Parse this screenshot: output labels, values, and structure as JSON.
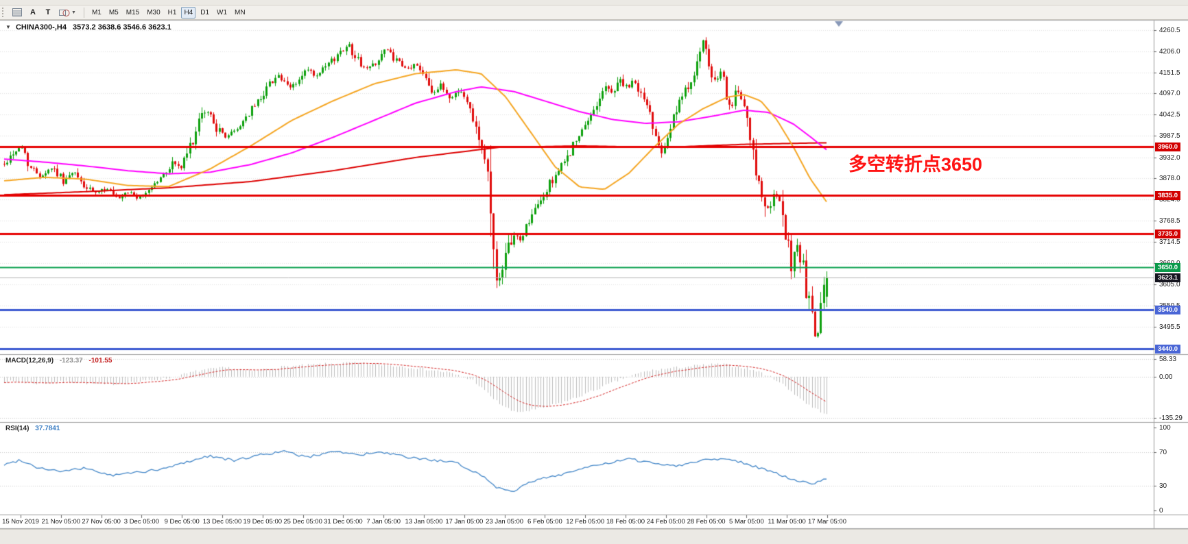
{
  "toolbar": {
    "tools": [
      {
        "id": "grid"
      },
      {
        "id": "text",
        "label": "A"
      },
      {
        "id": "textbox",
        "label": "T"
      },
      {
        "id": "shapes"
      }
    ],
    "timeframes": [
      "M1",
      "M5",
      "M15",
      "M30",
      "H1",
      "H4",
      "D1",
      "W1",
      "MN"
    ],
    "active_timeframe": "H4"
  },
  "chart": {
    "symbol_period": "CHINA300-,H4",
    "ohlc_text": "3573.2 3638.6 3546.6 3623.1",
    "annotation": "多空转折点3650",
    "annotation_color": "#ff1414",
    "price_ticks": [
      4260.5,
      4206.0,
      4151.5,
      4097.0,
      4042.5,
      3987.5,
      3932.0,
      3878.0,
      3824.0,
      3768.5,
      3714.5,
      3660.0,
      3605.0,
      3550.5,
      3495.5,
      3440.0
    ],
    "time_labels": [
      "15 Nov 2019",
      "21 Nov 05:00",
      "27 Nov 05:00",
      "3 Dec 05:00",
      "9 Dec 05:00",
      "13 Dec 05:00",
      "19 Dec 05:00",
      "25 Dec 05:00",
      "31 Dec 05:00",
      "7 Jan 05:00",
      "13 Jan 05:00",
      "17 Jan 05:00",
      "23 Jan 05:00",
      "6 Feb 05:00",
      "12 Feb 05:00",
      "18 Feb 05:00",
      "24 Feb 05:00",
      "28 Feb 05:00",
      "5 Mar 05:00",
      "11 Mar 05:00",
      "17 Mar 05:00"
    ],
    "levels": [
      {
        "label": "3960.0",
        "price": 3960.0,
        "line_color": "#e60000",
        "badge_color": "#d20000",
        "width": 3
      },
      {
        "label": "3835.0",
        "price": 3835.0,
        "line_color": "#e60000",
        "badge_color": "#d20000",
        "width": 3
      },
      {
        "label": "3735.0",
        "price": 3735.0,
        "line_color": "#e60000",
        "badge_color": "#d20000",
        "width": 3
      },
      {
        "label": "3650.0",
        "price": 3650.0,
        "line_color": "#0aa14e",
        "badge_color": "#0a9a4a",
        "width": 2
      },
      {
        "label": "3540.0",
        "price": 3540.0,
        "line_color": "#3a57d0",
        "badge_color": "#4a66d6",
        "width": 3
      },
      {
        "label": "3440.0",
        "price": 3440.0,
        "line_color": "#3a57d0",
        "badge_color": "#4a66d6",
        "width": 3
      }
    ],
    "current_price": {
      "label": "3623.1",
      "price": 3623.1,
      "badge_color": "#15151f",
      "line_color": "#b4b4b4"
    }
  },
  "macd": {
    "label": "MACD(12,26,9)",
    "main_value": "-123.37",
    "signal_value": "-101.55",
    "axis": [
      {
        "label": "58.33",
        "value": 58.33
      },
      {
        "label": "0.00",
        "value": 0
      },
      {
        "label": "-135.29",
        "value": -135.29
      }
    ]
  },
  "rsi": {
    "label": "RSI(14)",
    "value": "37.7841",
    "axis": [
      {
        "label": "100",
        "value": 100
      },
      {
        "label": "70",
        "value": 70
      },
      {
        "label": "30",
        "value": 30
      },
      {
        "label": "0",
        "value": 0
      }
    ],
    "level_lines": [
      70,
      30
    ]
  },
  "colors": {
    "bull": "#0da00d",
    "bear": "#e00b0b",
    "ma_fast": "#f5a623",
    "ma_mid": "#ff00ff",
    "ma_slow": "#dd0000",
    "macd_hist": "#bdbdbd",
    "macd_signal": "#d42020",
    "rsi_line": "#4286c8",
    "grid": "#e3e3e3",
    "divider": "#9c9c9c",
    "axis_text": "#1c1c1c"
  },
  "chart_data": {
    "type": "candlestick",
    "title": "CHINA300-,H4",
    "y_axis": {
      "range": [
        3425,
        4285
      ],
      "ticks": [
        4260.5,
        4206.0,
        4151.5,
        4097.0,
        4042.5,
        3987.5,
        3932.0,
        3878.0,
        3824.0,
        3768.5,
        3714.5,
        3660.0,
        3605.0,
        3550.5,
        3495.5,
        3440.0
      ]
    },
    "x_axis": {
      "labels": [
        "15 Nov 2019",
        "21 Nov 05:00",
        "27 Nov 05:00",
        "3 Dec 05:00",
        "9 Dec 05:00",
        "13 Dec 05:00",
        "19 Dec 05:00",
        "25 Dec 05:00",
        "31 Dec 05:00",
        "7 Jan 05:00",
        "13 Jan 05:00",
        "17 Jan 05:00",
        "23 Jan 05:00",
        "6 Feb 05:00",
        "12 Feb 05:00",
        "18 Feb 05:00",
        "24 Feb 05:00",
        "28 Feb 05:00",
        "5 Mar 05:00",
        "11 Mar 05:00",
        "17 Mar 05:00"
      ]
    },
    "current_ohlc": {
      "open": 3573.2,
      "high": 3638.6,
      "low": 3546.6,
      "close": 3623.1
    },
    "horizontal_levels": [
      3960.0,
      3835.0,
      3735.0,
      3650.0,
      3540.0,
      3440.0
    ],
    "bars_rendered": 280,
    "close_path": [
      [
        0.0,
        3915
      ],
      [
        0.012,
        3948
      ],
      [
        0.022,
        3958
      ],
      [
        0.032,
        3905
      ],
      [
        0.045,
        3885
      ],
      [
        0.058,
        3908
      ],
      [
        0.072,
        3872
      ],
      [
        0.085,
        3893
      ],
      [
        0.098,
        3855
      ],
      [
        0.112,
        3838
      ],
      [
        0.125,
        3855
      ],
      [
        0.138,
        3820
      ],
      [
        0.152,
        3843
      ],
      [
        0.165,
        3825
      ],
      [
        0.178,
        3856
      ],
      [
        0.192,
        3882
      ],
      [
        0.205,
        3920
      ],
      [
        0.215,
        3905
      ],
      [
        0.225,
        3955
      ],
      [
        0.235,
        4010
      ],
      [
        0.243,
        4052
      ],
      [
        0.252,
        4040
      ],
      [
        0.26,
        4000
      ],
      [
        0.27,
        3987
      ],
      [
        0.282,
        4002
      ],
      [
        0.295,
        4040
      ],
      [
        0.308,
        4075
      ],
      [
        0.32,
        4115
      ],
      [
        0.332,
        4148
      ],
      [
        0.345,
        4108
      ],
      [
        0.357,
        4128
      ],
      [
        0.368,
        4158
      ],
      [
        0.38,
        4138
      ],
      [
        0.392,
        4168
      ],
      [
        0.405,
        4195
      ],
      [
        0.417,
        4228
      ],
      [
        0.428,
        4188
      ],
      [
        0.44,
        4158
      ],
      [
        0.452,
        4178
      ],
      [
        0.464,
        4212
      ],
      [
        0.476,
        4182
      ],
      [
        0.488,
        4158
      ],
      [
        0.5,
        4172
      ],
      [
        0.512,
        4145
      ],
      [
        0.522,
        4098
      ],
      [
        0.532,
        4118
      ],
      [
        0.542,
        4082
      ],
      [
        0.552,
        4108
      ],
      [
        0.562,
        4078
      ],
      [
        0.572,
        4028
      ],
      [
        0.58,
        3962
      ],
      [
        0.587,
        3905
      ],
      [
        0.593,
        3730
      ],
      [
        0.598,
        3648
      ],
      [
        0.603,
        3608
      ],
      [
        0.61,
        3672
      ],
      [
        0.618,
        3735
      ],
      [
        0.627,
        3718
      ],
      [
        0.636,
        3762
      ],
      [
        0.645,
        3795
      ],
      [
        0.654,
        3825
      ],
      [
        0.663,
        3862
      ],
      [
        0.672,
        3895
      ],
      [
        0.681,
        3918
      ],
      [
        0.69,
        3958
      ],
      [
        0.7,
        3988
      ],
      [
        0.71,
        4025
      ],
      [
        0.72,
        4072
      ],
      [
        0.73,
        4115
      ],
      [
        0.739,
        4098
      ],
      [
        0.748,
        4135
      ],
      [
        0.757,
        4108
      ],
      [
        0.766,
        4128
      ],
      [
        0.775,
        4092
      ],
      [
        0.784,
        4052
      ],
      [
        0.792,
        3992
      ],
      [
        0.8,
        3952
      ],
      [
        0.808,
        3998
      ],
      [
        0.816,
        4048
      ],
      [
        0.825,
        4088
      ],
      [
        0.834,
        4128
      ],
      [
        0.842,
        4175
      ],
      [
        0.85,
        4225
      ],
      [
        0.857,
        4162
      ],
      [
        0.864,
        4120
      ],
      [
        0.871,
        4148
      ],
      [
        0.878,
        4098
      ],
      [
        0.885,
        4062
      ],
      [
        0.892,
        4108
      ],
      [
        0.899,
        4058
      ],
      [
        0.906,
        3982
      ],
      [
        0.913,
        3905
      ],
      [
        0.92,
        3858
      ],
      [
        0.927,
        3788
      ],
      [
        0.933,
        3822
      ],
      [
        0.94,
        3838
      ],
      [
        0.946,
        3768
      ],
      [
        0.952,
        3712
      ],
      [
        0.958,
        3648
      ],
      [
        0.964,
        3722
      ],
      [
        0.97,
        3658
      ],
      [
        0.976,
        3582
      ],
      [
        0.982,
        3512
      ],
      [
        0.988,
        3455
      ],
      [
        0.993,
        3548
      ],
      [
        1.0,
        3623
      ]
    ],
    "ma_fast_path": [
      [
        0.0,
        3872
      ],
      [
        0.05,
        3881
      ],
      [
        0.1,
        3876
      ],
      [
        0.15,
        3860
      ],
      [
        0.2,
        3857
      ],
      [
        0.25,
        3902
      ],
      [
        0.3,
        3962
      ],
      [
        0.35,
        4028
      ],
      [
        0.4,
        4078
      ],
      [
        0.45,
        4122
      ],
      [
        0.5,
        4148
      ],
      [
        0.55,
        4158
      ],
      [
        0.58,
        4148
      ],
      [
        0.61,
        4088
      ],
      [
        0.64,
        3998
      ],
      [
        0.67,
        3908
      ],
      [
        0.7,
        3856
      ],
      [
        0.73,
        3850
      ],
      [
        0.76,
        3892
      ],
      [
        0.79,
        3958
      ],
      [
        0.82,
        4018
      ],
      [
        0.85,
        4058
      ],
      [
        0.88,
        4088
      ],
      [
        0.9,
        4094
      ],
      [
        0.92,
        4078
      ],
      [
        0.94,
        4028
      ],
      [
        0.96,
        3958
      ],
      [
        0.98,
        3878
      ],
      [
        1.0,
        3818
      ]
    ],
    "ma_mid_path": [
      [
        0.0,
        3928
      ],
      [
        0.05,
        3920
      ],
      [
        0.1,
        3910
      ],
      [
        0.15,
        3898
      ],
      [
        0.2,
        3890
      ],
      [
        0.25,
        3894
      ],
      [
        0.3,
        3914
      ],
      [
        0.35,
        3944
      ],
      [
        0.4,
        3984
      ],
      [
        0.45,
        4028
      ],
      [
        0.5,
        4072
      ],
      [
        0.55,
        4102
      ],
      [
        0.58,
        4114
      ],
      [
        0.62,
        4102
      ],
      [
        0.66,
        4076
      ],
      [
        0.7,
        4050
      ],
      [
        0.74,
        4030
      ],
      [
        0.78,
        4020
      ],
      [
        0.82,
        4024
      ],
      [
        0.86,
        4038
      ],
      [
        0.9,
        4054
      ],
      [
        0.93,
        4048
      ],
      [
        0.96,
        4018
      ],
      [
        0.98,
        3986
      ],
      [
        1.0,
        3952
      ]
    ],
    "ma_slow_path": [
      [
        0.0,
        3836
      ],
      [
        0.1,
        3844
      ],
      [
        0.2,
        3854
      ],
      [
        0.3,
        3870
      ],
      [
        0.4,
        3898
      ],
      [
        0.5,
        3932
      ],
      [
        0.6,
        3958
      ],
      [
        0.7,
        3962
      ],
      [
        0.8,
        3958
      ],
      [
        0.9,
        3966
      ],
      [
        1.0,
        3970
      ]
    ],
    "macd": {
      "params": "12,26,9",
      "last_main": -123.37,
      "last_signal": -101.55,
      "range": [
        -135.29,
        58.33
      ],
      "path": [
        [
          0.0,
          -15
        ],
        [
          0.04,
          -22
        ],
        [
          0.08,
          -16
        ],
        [
          0.12,
          -26
        ],
        [
          0.16,
          -18
        ],
        [
          0.2,
          -4
        ],
        [
          0.24,
          22
        ],
        [
          0.27,
          30
        ],
        [
          0.3,
          18
        ],
        [
          0.34,
          33
        ],
        [
          0.38,
          40
        ],
        [
          0.42,
          46
        ],
        [
          0.46,
          40
        ],
        [
          0.5,
          30
        ],
        [
          0.54,
          14
        ],
        [
          0.57,
          -12
        ],
        [
          0.6,
          -85
        ],
        [
          0.62,
          -118
        ],
        [
          0.64,
          -112
        ],
        [
          0.66,
          -100
        ],
        [
          0.69,
          -75
        ],
        [
          0.72,
          -42
        ],
        [
          0.75,
          -8
        ],
        [
          0.78,
          18
        ],
        [
          0.81,
          28
        ],
        [
          0.84,
          36
        ],
        [
          0.87,
          42
        ],
        [
          0.9,
          30
        ],
        [
          0.92,
          14
        ],
        [
          0.94,
          -12
        ],
        [
          0.96,
          -55
        ],
        [
          0.98,
          -98
        ],
        [
          1.0,
          -123.37
        ]
      ]
    },
    "rsi": {
      "period": 14,
      "last": 37.7841,
      "levels": [
        30,
        70
      ],
      "path": [
        [
          0.0,
          55
        ],
        [
          0.02,
          61
        ],
        [
          0.04,
          52
        ],
        [
          0.07,
          47
        ],
        [
          0.1,
          51
        ],
        [
          0.13,
          42
        ],
        [
          0.16,
          46
        ],
        [
          0.19,
          49
        ],
        [
          0.22,
          58
        ],
        [
          0.25,
          66
        ],
        [
          0.28,
          60
        ],
        [
          0.31,
          67
        ],
        [
          0.34,
          71
        ],
        [
          0.37,
          64
        ],
        [
          0.4,
          72
        ],
        [
          0.43,
          67
        ],
        [
          0.46,
          70
        ],
        [
          0.49,
          64
        ],
        [
          0.52,
          61
        ],
        [
          0.55,
          57
        ],
        [
          0.58,
          43
        ],
        [
          0.6,
          27
        ],
        [
          0.62,
          24
        ],
        [
          0.64,
          34
        ],
        [
          0.66,
          40
        ],
        [
          0.68,
          44
        ],
        [
          0.7,
          50
        ],
        [
          0.73,
          56
        ],
        [
          0.76,
          62
        ],
        [
          0.79,
          57
        ],
        [
          0.82,
          54
        ],
        [
          0.85,
          61
        ],
        [
          0.88,
          63
        ],
        [
          0.9,
          57
        ],
        [
          0.92,
          51
        ],
        [
          0.94,
          44
        ],
        [
          0.96,
          37
        ],
        [
          0.98,
          32
        ],
        [
          1.0,
          37.78
        ]
      ]
    }
  }
}
